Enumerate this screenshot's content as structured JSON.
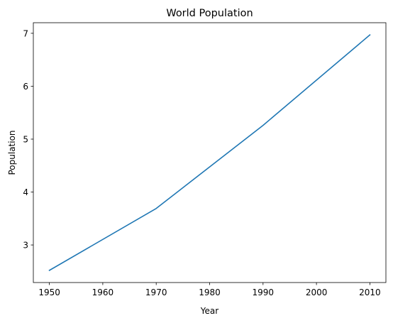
{
  "chart_data": {
    "type": "line",
    "title": "World Population",
    "xlabel": "Year",
    "ylabel": "Population",
    "x": [
      1950,
      1970,
      1990,
      2010
    ],
    "series": [
      {
        "values": [
          2.52,
          3.69,
          5.26,
          6.97
        ],
        "color": "#1f77b4"
      }
    ],
    "xticks": [
      1950,
      1960,
      1970,
      1980,
      1990,
      2000,
      2010
    ],
    "yticks": [
      3,
      4,
      5,
      6,
      7
    ],
    "xlim": [
      1947,
      2013
    ],
    "ylim": [
      2.29,
      7.2
    ],
    "grid": false,
    "legend": "none"
  }
}
